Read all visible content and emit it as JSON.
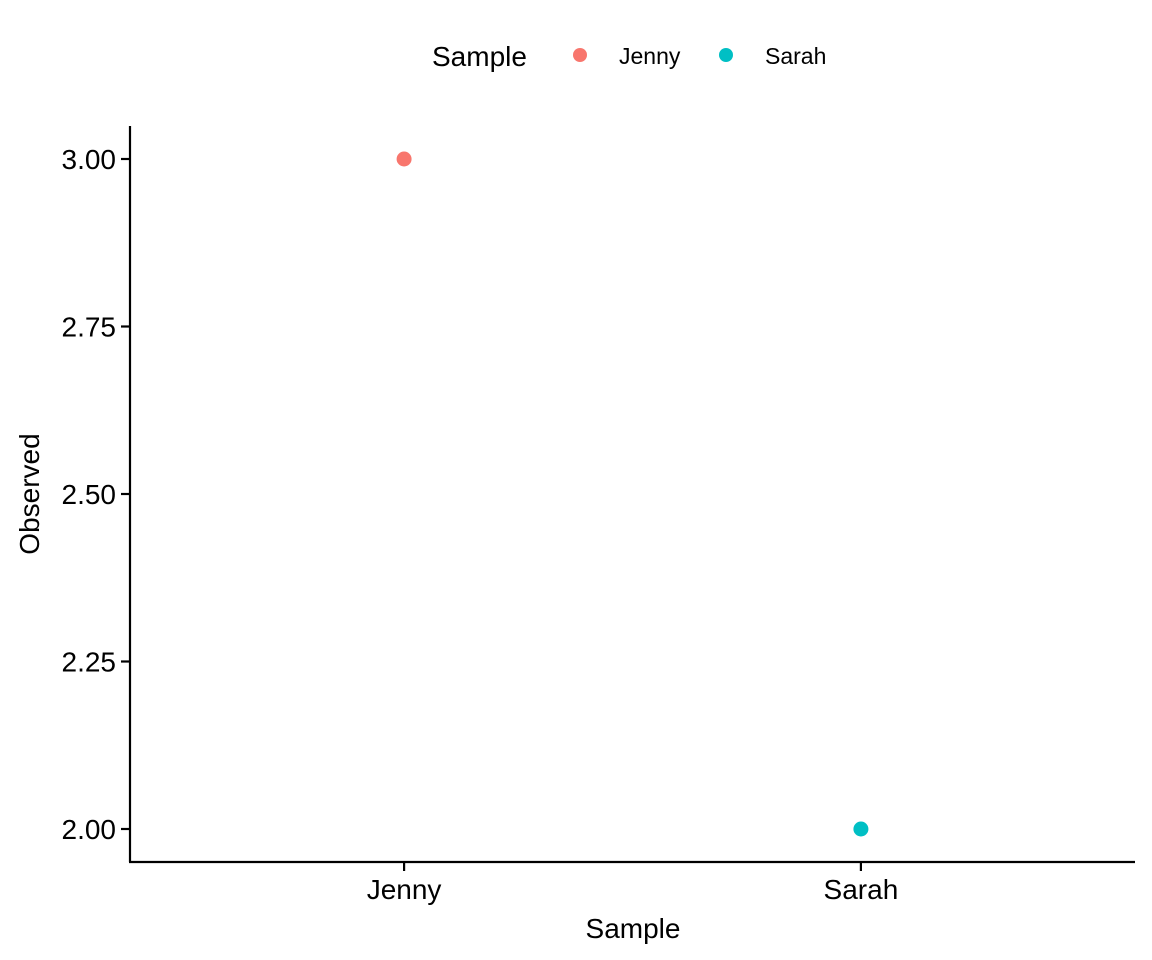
{
  "chart_data": {
    "type": "scatter",
    "title": "",
    "xlabel": "Sample",
    "ylabel": "Observed",
    "categories": [
      "Jenny",
      "Sarah"
    ],
    "ylim": [
      1.95,
      3.05
    ],
    "yticks": [
      2.0,
      2.25,
      2.5,
      2.75,
      3.0
    ],
    "ytick_labels": [
      "2.00",
      "2.25",
      "2.50",
      "2.75",
      "3.00"
    ],
    "grid": false,
    "legend": {
      "title": "Sample",
      "position": "top",
      "entries": [
        {
          "label": "Jenny",
          "color": "#F8766D"
        },
        {
          "label": "Sarah",
          "color": "#00BFC4"
        }
      ]
    },
    "series": [
      {
        "name": "Jenny",
        "color": "#F8766D",
        "points": [
          {
            "x": "Jenny",
            "y": 3.0
          }
        ]
      },
      {
        "name": "Sarah",
        "color": "#00BFC4",
        "points": [
          {
            "x": "Sarah",
            "y": 2.0
          }
        ]
      }
    ]
  }
}
